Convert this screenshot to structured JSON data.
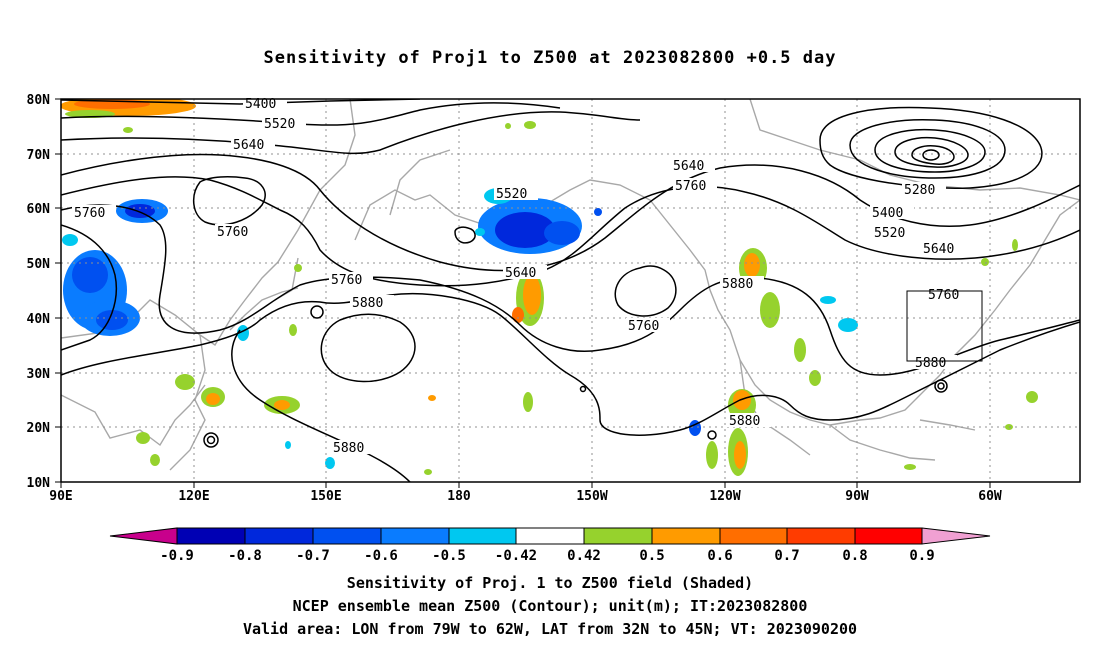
{
  "title": "Sensitivity of Proj1 to Z500 at 2023082800 +0.5 day",
  "axes": {
    "lat_labels": [
      "80N",
      "70N",
      "60N",
      "50N",
      "40N",
      "30N",
      "20N",
      "10N"
    ],
    "lon_labels": [
      "90E",
      "120E",
      "150E",
      "180",
      "150W",
      "120W",
      "90W",
      "60W"
    ]
  },
  "contour_labels": [
    "5400",
    "5520",
    "5640",
    "5760",
    "5760",
    "5760",
    "5880",
    "5520",
    "5640",
    "5760",
    "5640",
    "5760",
    "5880",
    "5280",
    "5400",
    "5520",
    "5640",
    "5760",
    "5880",
    "5880",
    "5880"
  ],
  "colorbar": {
    "tick_labels": [
      "-0.9",
      "-0.8",
      "-0.7",
      "-0.6",
      "-0.5",
      "-0.42",
      "0.42",
      "0.5",
      "0.6",
      "0.7",
      "0.8",
      "0.9"
    ],
    "colors": [
      "#c8008c",
      "#0000b4",
      "#0028dc",
      "#0050f0",
      "#0a7cff",
      "#00c8f0",
      "#ffffff",
      "#96d22d",
      "#ff9b00",
      "#ff6e00",
      "#ff3c00",
      "#ff0000",
      "#f0a0d2"
    ]
  },
  "captions": {
    "line1": "Sensitivity of Proj. 1 to Z500 field (Shaded)",
    "line2": "NCEP ensemble mean Z500 (Contour); unit(m); IT:2023082800",
    "line3": "Valid area: LON from 79W to 62W, LAT from 32N to 45N; VT: 2023090200"
  }
}
